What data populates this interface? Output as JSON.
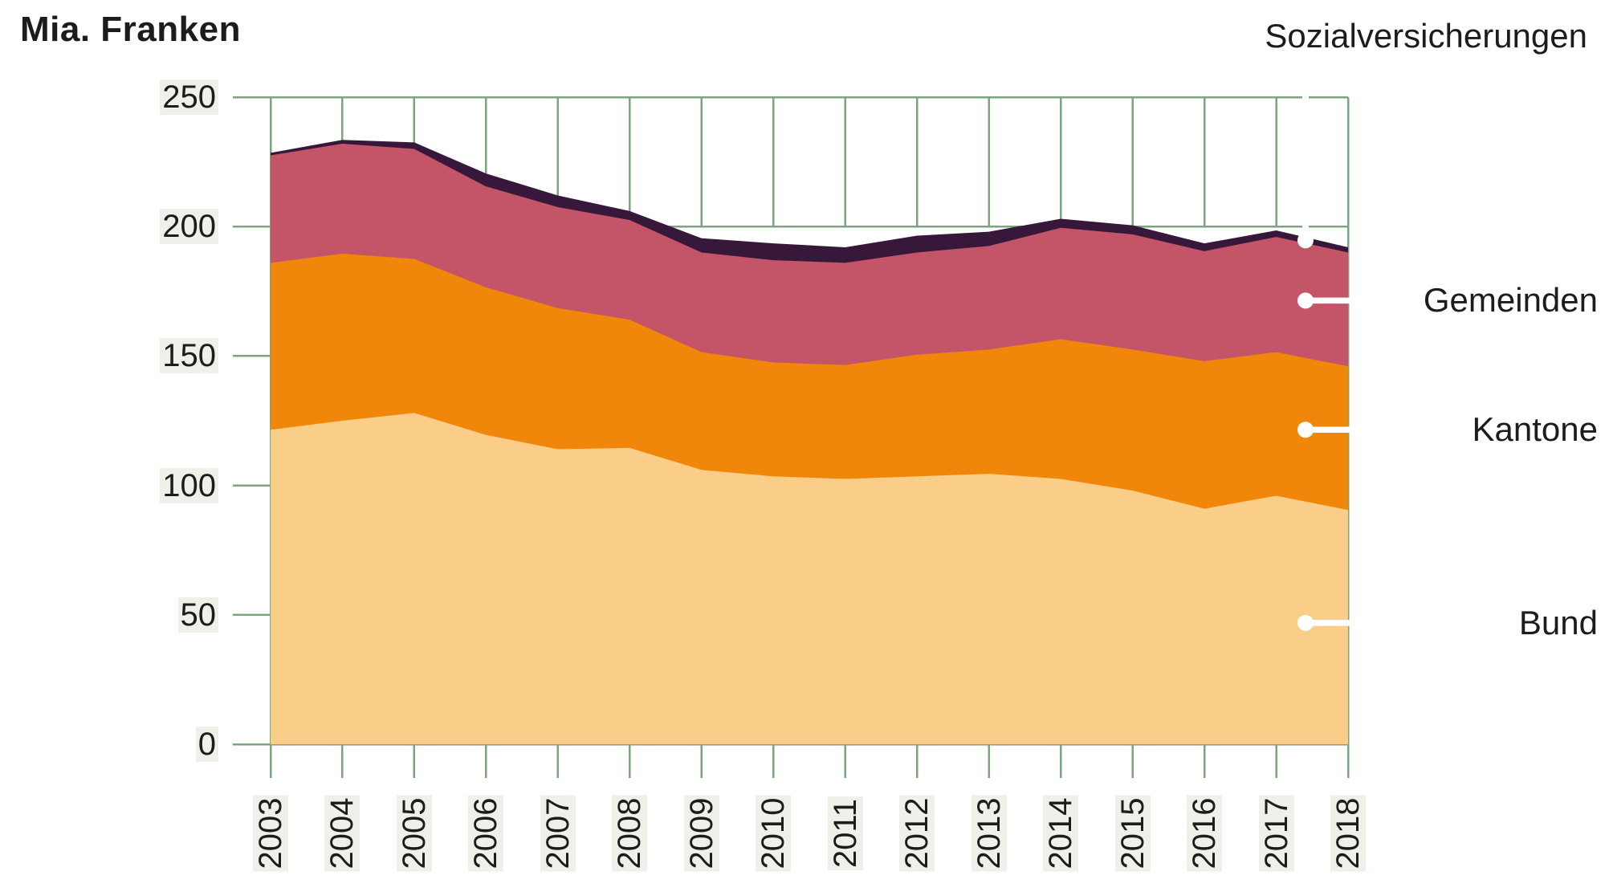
{
  "title": "Mia. Franken",
  "chart_data": {
    "type": "area",
    "stacked": true,
    "title": "Mia. Franken",
    "ylabel": "Mia. Franken",
    "x": [
      2003,
      2004,
      2005,
      2006,
      2007,
      2008,
      2009,
      2010,
      2011,
      2012,
      2013,
      2014,
      2015,
      2016,
      2017,
      2018
    ],
    "y_ticks": [
      0,
      50,
      100,
      150,
      200,
      250
    ],
    "ylim": [
      0,
      250
    ],
    "legend_position": "right",
    "grid_color": "#7ca47e",
    "text_color": "#1c1c1c",
    "callout_dot_color": "#ffffff",
    "series": [
      {
        "name": "Bund",
        "color": "#facd89",
        "values": [
          121.5,
          125,
          128,
          119.5,
          114,
          114.5,
          106,
          103.5,
          102.5,
          103.5,
          104.5,
          102.5,
          98,
          91,
          96,
          90.5
        ]
      },
      {
        "name": "Kantone",
        "color": "#f0870a",
        "values": [
          64.5,
          64.5,
          59.5,
          57,
          54.5,
          49.5,
          45.5,
          44,
          44,
          47,
          48,
          54,
          54.5,
          57,
          55.5,
          55.5
        ]
      },
      {
        "name": "Gemeinden",
        "color": "#c45568",
        "values": [
          41.5,
          42.5,
          42.5,
          39,
          39,
          38.5,
          38.5,
          39.5,
          39.5,
          39.5,
          40,
          43,
          44.5,
          42.5,
          44.5,
          44
        ]
      },
      {
        "name": "Sozialversicherungen",
        "color": "#38183a",
        "values": [
          1,
          1.5,
          2.5,
          5,
          4.5,
          3.5,
          5.5,
          6.5,
          6,
          6.5,
          5.5,
          3.5,
          3.5,
          3,
          2.5,
          2
        ]
      }
    ]
  }
}
